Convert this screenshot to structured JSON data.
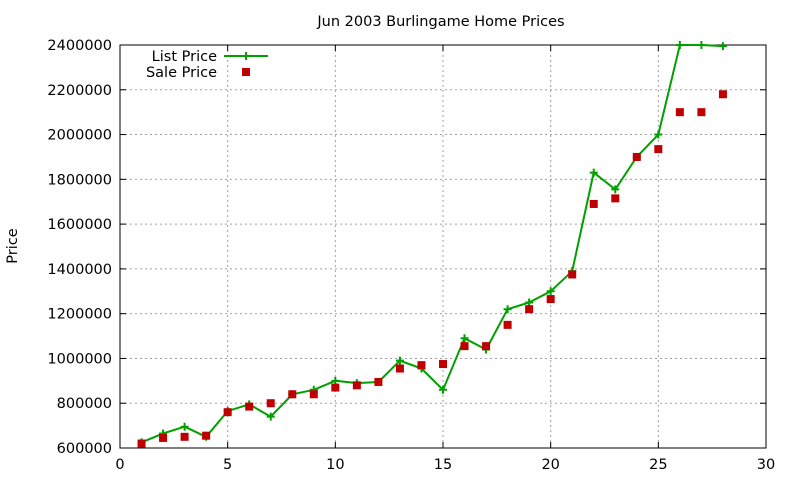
{
  "chart_data": {
    "type": "line",
    "title": "Jun 2003 Burlingame Home Prices",
    "xlabel": "",
    "ylabel": "Price",
    "xlim": [
      0,
      30
    ],
    "ylim": [
      600000,
      2400000
    ],
    "xticks": [
      "0",
      "5",
      "10",
      "15",
      "20",
      "25",
      "30"
    ],
    "yticks": [
      "600000",
      "800000",
      "1000000",
      "1200000",
      "1400000",
      "1600000",
      "1800000",
      "2000000",
      "2200000",
      "2400000"
    ],
    "grid": true,
    "legend_position": "top-left",
    "series": [
      {
        "name": "List Price",
        "style": "line-with-plus-markers",
        "color": "#00a000",
        "x": [
          1,
          2,
          3,
          4,
          5,
          6,
          7,
          8,
          9,
          10,
          11,
          12,
          13,
          14,
          15,
          16,
          17,
          18,
          19,
          20,
          21,
          22,
          23,
          24,
          25,
          26,
          27,
          28
        ],
        "values": [
          625000,
          665000,
          695000,
          650000,
          765000,
          795000,
          740000,
          840000,
          860000,
          900000,
          890000,
          895000,
          990000,
          955000,
          860000,
          1090000,
          1040000,
          1220000,
          1250000,
          1300000,
          1390000,
          1830000,
          1755000,
          1900000,
          2000000,
          2400000,
          2400000,
          2395000
        ]
      },
      {
        "name": "Sale Price",
        "style": "square-markers",
        "color": "#c00000",
        "x": [
          1,
          2,
          3,
          4,
          5,
          6,
          7,
          8,
          9,
          10,
          11,
          12,
          13,
          14,
          15,
          16,
          17,
          18,
          19,
          20,
          21,
          22,
          23,
          24,
          25,
          26,
          27,
          28
        ],
        "values": [
          620000,
          645000,
          650000,
          655000,
          760000,
          785000,
          800000,
          840000,
          840000,
          870000,
          880000,
          895000,
          955000,
          970000,
          975000,
          1055000,
          1055000,
          1150000,
          1220000,
          1265000,
          1375000,
          1690000,
          1715000,
          1900000,
          1935000,
          2100000,
          2100000,
          2180000
        ]
      }
    ]
  }
}
